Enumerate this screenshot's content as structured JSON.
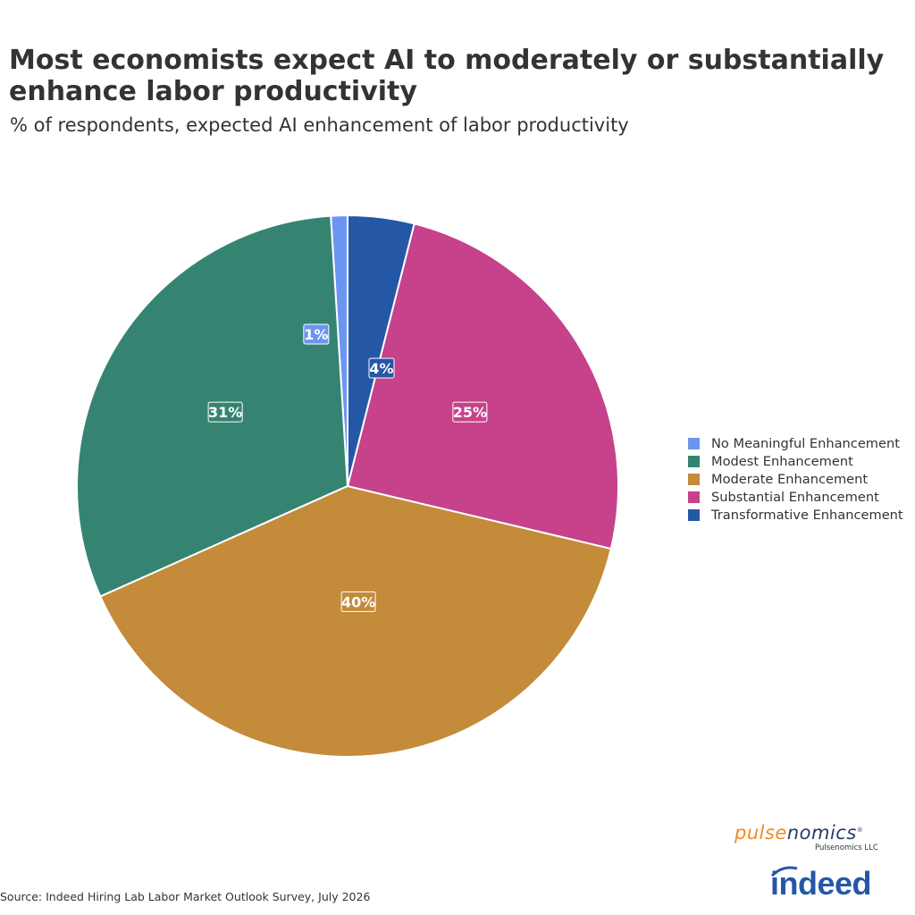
{
  "title": "Most economists expect AI to moderately or substantially enhance labor productivity",
  "subtitle": "% of respondents, expected AI enhancement of labor productivity",
  "source": "Source: Indeed Hiring Lab Labor Market Outlook Survey, July 2026",
  "logos": {
    "pulsenomics_part1": "pulse",
    "pulsenomics_part2": "nomics",
    "pulsenomics_reg": "®",
    "pulsenomics_sub": "Pulsenomics LLC",
    "indeed": "indeed"
  },
  "chart_data": {
    "type": "pie",
    "title": "Most economists expect AI to moderately or substantially enhance labor productivity",
    "subtitle": "% of respondents, expected AI enhancement of labor productivity",
    "start_angle_deg": 0,
    "direction": "counterclockwise",
    "legend_position": "right",
    "slices": [
      {
        "name": "No Meaningful Enhancement",
        "value": 1,
        "label": "1%",
        "color": "#6b95f0"
      },
      {
        "name": "Modest Enhancement",
        "value": 31,
        "label": "31%",
        "color": "#358471"
      },
      {
        "name": "Moderate Enhancement",
        "value": 40,
        "label": "40%",
        "color": "#c38b3a"
      },
      {
        "name": "Substantial Enhancement",
        "value": 25,
        "label": "25%",
        "color": "#c6428a"
      },
      {
        "name": "Transformative Enhancement",
        "value": 4,
        "label": "4%",
        "color": "#2557a7"
      }
    ]
  }
}
